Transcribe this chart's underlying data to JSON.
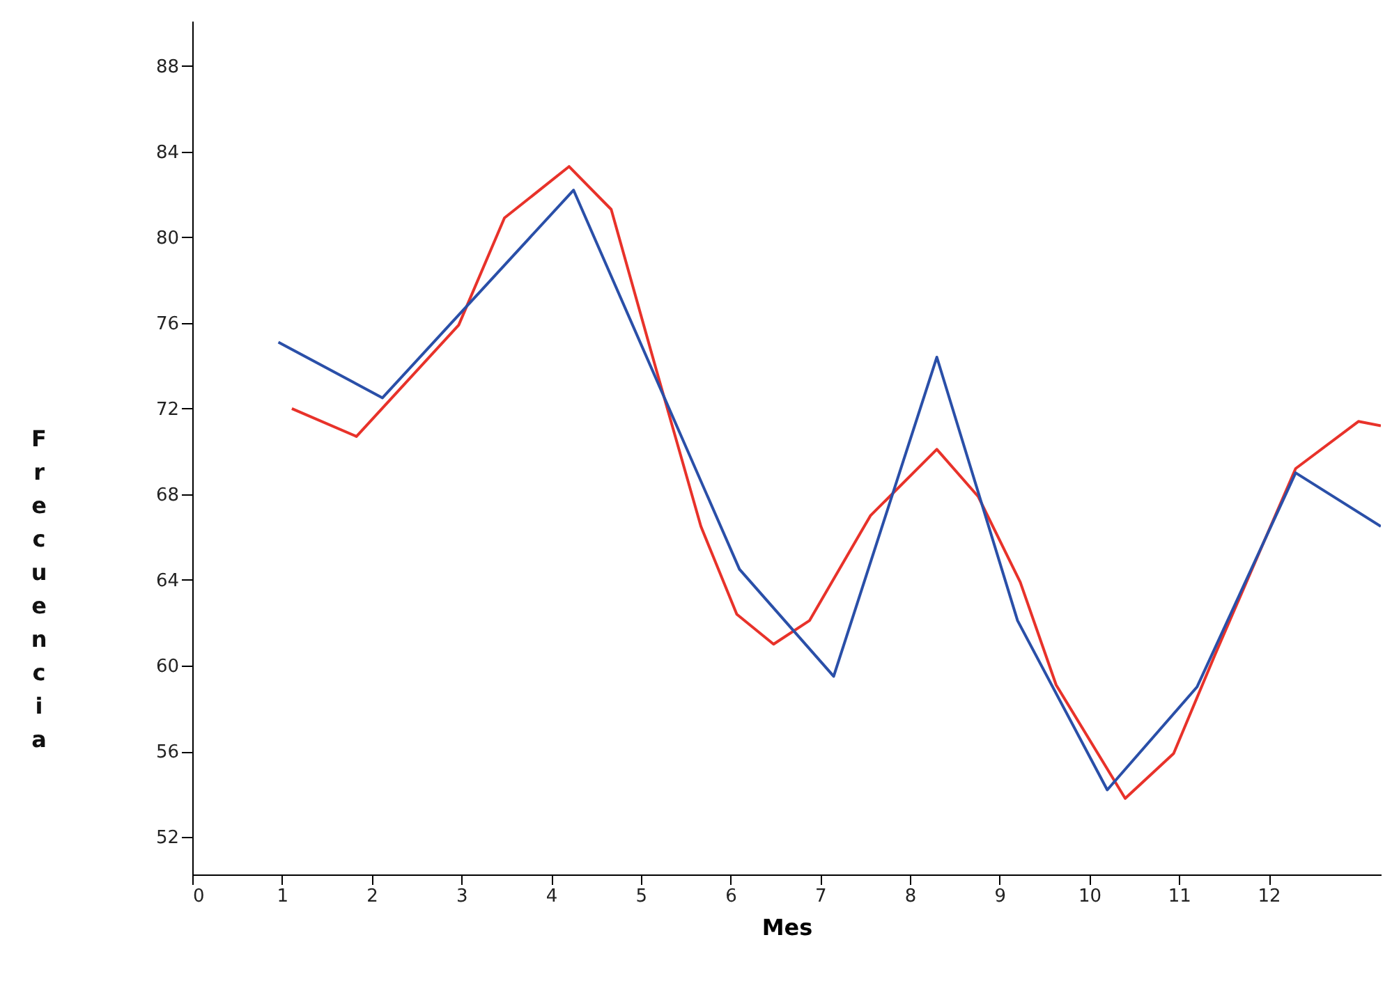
{
  "chart_data": {
    "type": "line",
    "xlabel": "Mes",
    "ylabel": "Frecuencia",
    "xlim": [
      0,
      13.25
    ],
    "ylim": [
      50.25,
      90.1
    ],
    "xticks": [
      0,
      1,
      2,
      3,
      4,
      5,
      6,
      7,
      8,
      9,
      10,
      11,
      12
    ],
    "yticks": [
      52,
      56,
      60,
      64,
      68,
      72,
      76,
      80,
      84,
      88
    ],
    "grid": false,
    "marker": "none",
    "line_style": "solid",
    "series": [
      {
        "color": "#e8322a",
        "x": [
          1.11,
          1.83,
          2.97,
          3.48,
          4.2,
          4.67,
          5.18,
          5.67,
          6.07,
          6.48,
          6.88,
          7.56,
          8.3,
          8.76,
          9.23,
          9.63,
          10.4,
          10.94,
          11.4,
          12.3,
          13.0,
          13.25
        ],
        "values": [
          72.0,
          70.7,
          75.9,
          80.9,
          83.3,
          81.3,
          73.7,
          66.5,
          62.4,
          61.0,
          62.1,
          67.0,
          70.1,
          67.9,
          63.9,
          59.1,
          53.8,
          55.9,
          60.5,
          69.2,
          71.4,
          71.2
        ]
      },
      {
        "color": "#2a4fa8",
        "x": [
          0.96,
          2.12,
          4.25,
          6.1,
          7.15,
          8.3,
          9.2,
          10.2,
          11.2,
          12.3,
          13.25
        ],
        "values": [
          75.1,
          72.5,
          82.2,
          64.5,
          59.5,
          74.4,
          62.1,
          54.2,
          59.0,
          69.0,
          66.5
        ]
      }
    ]
  }
}
